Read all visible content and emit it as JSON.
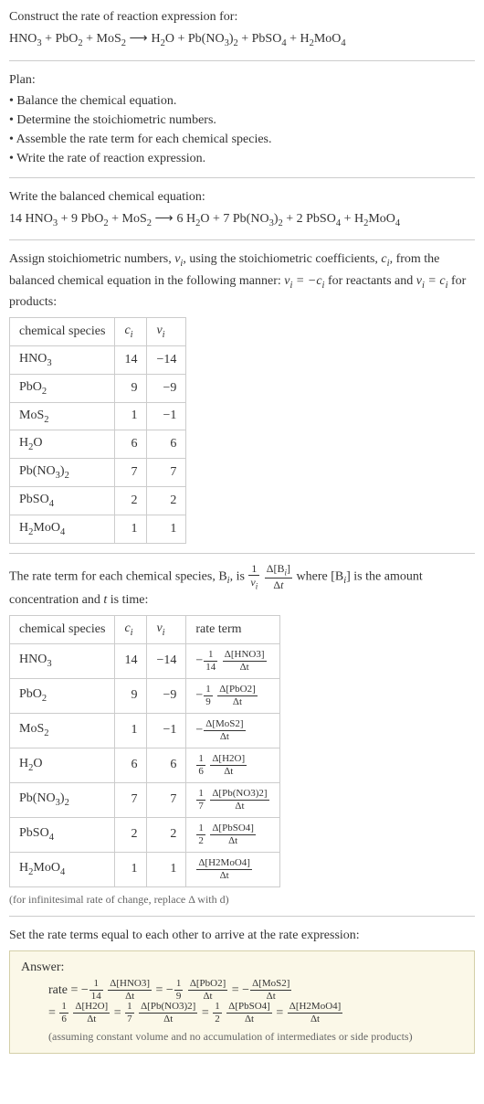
{
  "header": {
    "title": "Construct the rate of reaction expression for:",
    "equation_lhs": "HNO₃ + PbO₂ + MoS₂",
    "equation_rhs": "H₂O + Pb(NO₃)₂ + PbSO₄ + H₂MoO₄"
  },
  "plan": {
    "title": "Plan:",
    "items": [
      "• Balance the chemical equation.",
      "• Determine the stoichiometric numbers.",
      "• Assemble the rate term for each chemical species.",
      "• Write the rate of reaction expression."
    ]
  },
  "balanced": {
    "title": "Write the balanced chemical equation:",
    "lhs": "14 HNO₃ + 9 PbO₂ + MoS₂",
    "rhs": "6 H₂O + 7 Pb(NO₃)₂ + 2 PbSO₄ + H₂MoO₄"
  },
  "stoich": {
    "intro_a": "Assign stoichiometric numbers, ",
    "intro_b": ", using the stoichiometric coefficients, ",
    "intro_c": ", from the balanced chemical equation in the following manner: ",
    "intro_d": " for reactants and ",
    "intro_e": " for products:",
    "headers": [
      "chemical species",
      "cᵢ",
      "νᵢ"
    ],
    "rows": [
      {
        "sp": "HNO₃",
        "c": "14",
        "v": "−14"
      },
      {
        "sp": "PbO₂",
        "c": "9",
        "v": "−9"
      },
      {
        "sp": "MoS₂",
        "c": "1",
        "v": "−1"
      },
      {
        "sp": "H₂O",
        "c": "6",
        "v": "6"
      },
      {
        "sp": "Pb(NO₃)₂",
        "c": "7",
        "v": "7"
      },
      {
        "sp": "PbSO₄",
        "c": "2",
        "v": "2"
      },
      {
        "sp": "H₂MoO₄",
        "c": "1",
        "v": "1"
      }
    ]
  },
  "rateterm": {
    "intro_a": "The rate term for each chemical species, B",
    "intro_b": ", is ",
    "intro_c": " where [B",
    "intro_d": "] is the amount concentration and ",
    "intro_e": " is time:",
    "headers": [
      "chemical species",
      "cᵢ",
      "νᵢ",
      "rate term"
    ],
    "rows": [
      {
        "sp": "HNO₃",
        "c": "14",
        "v": "−14",
        "sign": "−",
        "coef_num": "1",
        "coef_den": "14",
        "delta": "Δ[HNO3]"
      },
      {
        "sp": "PbO₂",
        "c": "9",
        "v": "−9",
        "sign": "−",
        "coef_num": "1",
        "coef_den": "9",
        "delta": "Δ[PbO2]"
      },
      {
        "sp": "MoS₂",
        "c": "1",
        "v": "−1",
        "sign": "−",
        "coef_num": "",
        "coef_den": "",
        "delta": "Δ[MoS2]"
      },
      {
        "sp": "H₂O",
        "c": "6",
        "v": "6",
        "sign": "",
        "coef_num": "1",
        "coef_den": "6",
        "delta": "Δ[H2O]"
      },
      {
        "sp": "Pb(NO₃)₂",
        "c": "7",
        "v": "7",
        "sign": "",
        "coef_num": "1",
        "coef_den": "7",
        "delta": "Δ[Pb(NO3)2]"
      },
      {
        "sp": "PbSO₄",
        "c": "2",
        "v": "2",
        "sign": "",
        "coef_num": "1",
        "coef_den": "2",
        "delta": "Δ[PbSO4]"
      },
      {
        "sp": "H₂MoO₄",
        "c": "1",
        "v": "1",
        "sign": "",
        "coef_num": "",
        "coef_den": "",
        "delta": "Δ[H2MoO4]"
      }
    ],
    "note": "(for infinitesimal rate of change, replace Δ with d)"
  },
  "final": {
    "title": "Set the rate terms equal to each other to arrive at the rate expression:",
    "answer_label": "Answer:",
    "note": "(assuming constant volume and no accumulation of intermediates or side products)"
  }
}
